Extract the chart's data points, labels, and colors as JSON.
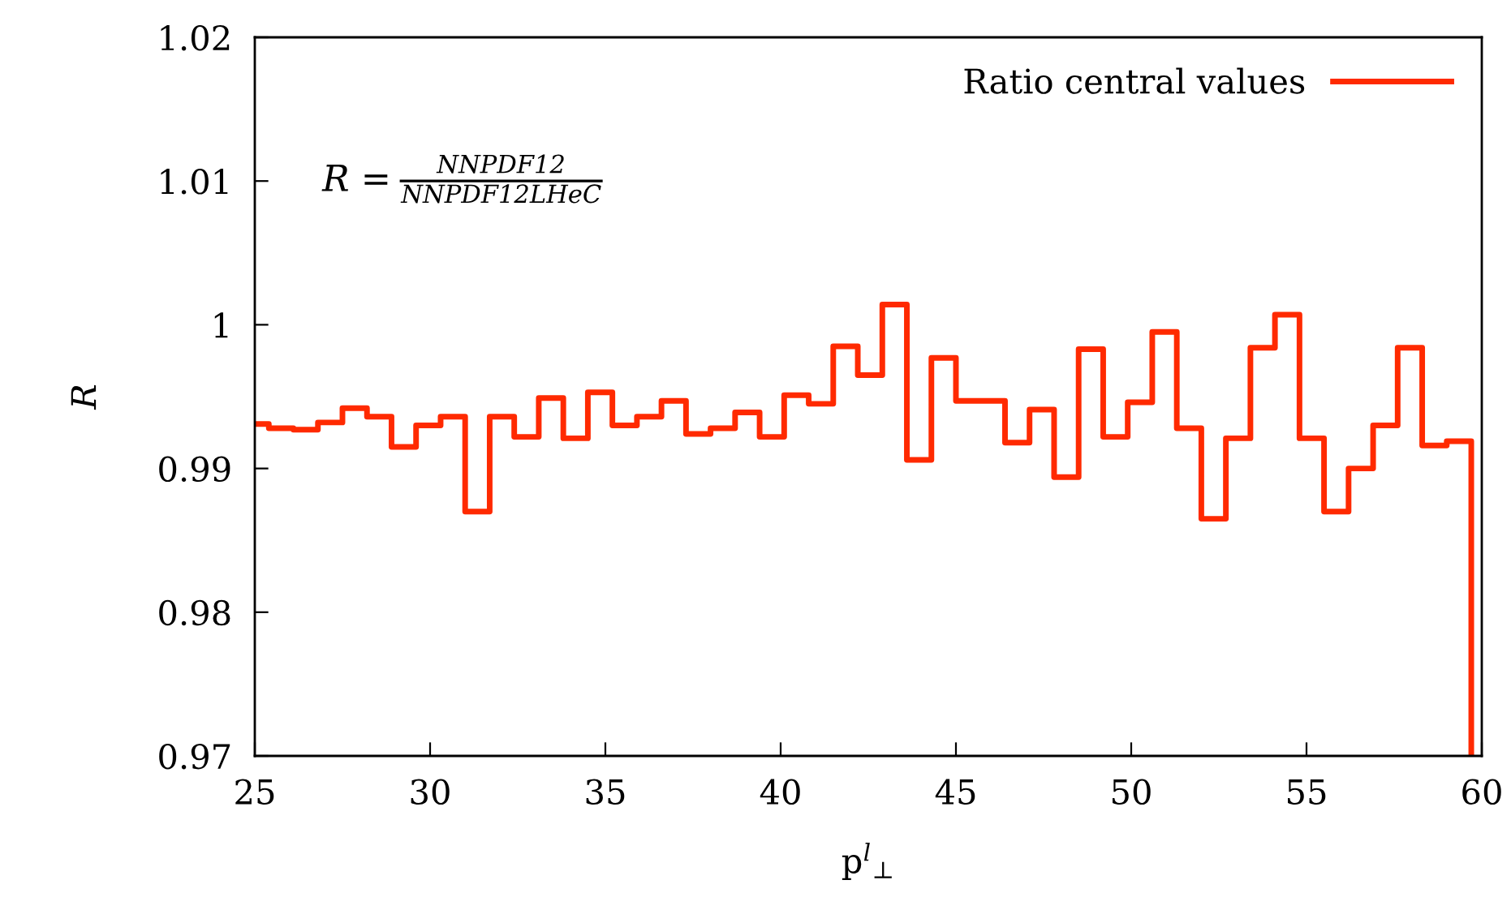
{
  "chart_data": {
    "type": "histogram",
    "xlabel": "p$^{l}$$_{⊥}$",
    "ylabel": "R",
    "annotations": [
      "R =",
      "NNPDF12",
      "NNPDF12LHeC"
    ],
    "bins": [
      24.7,
      25.4,
      26.1,
      26.8,
      27.5,
      28.2,
      28.9,
      29.6,
      30.3,
      31.0,
      31.7,
      32.4,
      33.1,
      33.8,
      34.5,
      35.2,
      35.9,
      36.6,
      37.3,
      38.0,
      38.7,
      39.4,
      40.1,
      40.8,
      41.5,
      42.2,
      42.9,
      43.6,
      44.3,
      45.0,
      45.7,
      46.4,
      47.1,
      47.8,
      48.5,
      49.2,
      49.9,
      50.6,
      51.3,
      52.0,
      52.7,
      53.4,
      54.1,
      54.8,
      55.5,
      56.2,
      56.9,
      57.6,
      58.3,
      59.0,
      59.7
    ],
    "series": [
      {
        "name": "Ratio central values",
        "color": "#ff2a00",
        "values": [
          0.9931,
          0.9928,
          0.9927,
          0.9932,
          0.9942,
          0.9936,
          0.9915,
          0.993,
          0.9936,
          0.987,
          0.9936,
          0.9922,
          0.9949,
          0.9921,
          0.9953,
          0.993,
          0.9936,
          0.9947,
          0.9924,
          0.9928,
          0.9939,
          0.9922,
          0.9951,
          0.9945,
          0.9985,
          0.9965,
          1.0014,
          0.9906,
          0.9977,
          0.9947,
          0.9947,
          0.9918,
          0.9941,
          0.9894,
          0.9983,
          0.9922,
          0.9946,
          0.9995,
          0.9928,
          0.9865,
          0.9921,
          0.9984,
          1.0007,
          0.9921,
          0.987,
          0.99,
          0.993,
          0.9984,
          0.9916,
          0.9919
        ]
      }
    ],
    "xlim": [
      25,
      60
    ],
    "xticks": [
      25,
      30,
      35,
      40,
      45,
      50,
      55,
      60
    ],
    "ylim": [
      0.97,
      1.02
    ],
    "yticks": [
      0.97,
      0.98,
      0.99,
      {
        "value": 1.0,
        "label": "1"
      },
      1.01,
      1.02
    ],
    "legend": "top right",
    "grid": false
  }
}
